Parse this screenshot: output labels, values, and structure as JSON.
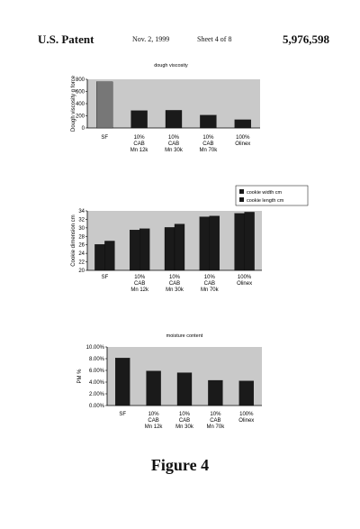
{
  "header": {
    "left": "U.S. Patent",
    "date": "Nov. 2, 1999",
    "sheet": "Sheet 4 of 8",
    "number": "5,976,598"
  },
  "figure_caption": "Figure 4",
  "colors": {
    "bar": "#1a1a1a",
    "bar_first": "#777777",
    "plot_bg": "#c9c9c9",
    "axis": "#000000"
  },
  "chart_data": [
    {
      "type": "bar",
      "title": "dough viscosity",
      "ylabel": "Dough viscosity g force",
      "xlabel": "",
      "ylim": [
        0,
        800
      ],
      "yticks": [
        "0",
        "200",
        "400",
        "600",
        "800"
      ],
      "categories": [
        [
          "SF"
        ],
        [
          "10%",
          "CAB",
          "Mn 12k"
        ],
        [
          "10%",
          "CAB",
          "Mn 30k"
        ],
        [
          "10%",
          "CAB",
          "Mn 70k"
        ],
        [
          "100%",
          "Olinex"
        ]
      ],
      "values": [
        760,
        285,
        290,
        210,
        135
      ]
    },
    {
      "type": "bar",
      "title": "",
      "ylabel": "Cookie dimension cm",
      "xlabel": "",
      "ylim": [
        20,
        34
      ],
      "yticks": [
        "20",
        "22",
        "24",
        "26",
        "28",
        "30",
        "32",
        "34"
      ],
      "categories": [
        [
          "SF"
        ],
        [
          "10%",
          "CAB",
          "Mn 12k"
        ],
        [
          "10%",
          "CAB",
          "Mn 30k"
        ],
        [
          "10%",
          "CAB",
          "Mn 70k"
        ],
        [
          "100%",
          "Olinex"
        ]
      ],
      "legend": [
        "cookie width cm",
        "cookie length cm"
      ],
      "series": [
        {
          "name": "cookie width cm",
          "values": [
            26.1,
            29.5,
            30.1,
            32.6,
            33.4
          ]
        },
        {
          "name": "cookie length cm",
          "values": [
            26.9,
            29.8,
            30.9,
            32.8,
            33.7
          ]
        }
      ]
    },
    {
      "type": "bar",
      "title": "moisture content",
      "ylabel": "PM %",
      "xlabel": "",
      "ylim": [
        0,
        10
      ],
      "yticks": [
        "0.00%",
        "2.00%",
        "4.00%",
        "6.00%",
        "8.00%",
        "10.00%"
      ],
      "categories": [
        [
          "SF"
        ],
        [
          "10%",
          "CAB",
          "Mn 12k"
        ],
        [
          "10%",
          "CAB",
          "Mn 30k"
        ],
        [
          "10%",
          "CAB",
          "Mn 70k"
        ],
        [
          "100%",
          "Olinex"
        ]
      ],
      "values": [
        8.1,
        5.9,
        5.6,
        4.3,
        4.2
      ]
    }
  ]
}
